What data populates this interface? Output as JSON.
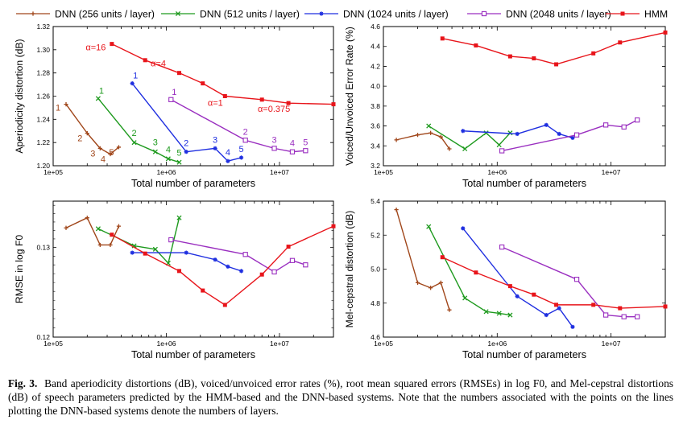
{
  "legend": [
    {
      "name": "DNN (256 units / layer)",
      "color": "#a0461a",
      "marker": "plus"
    },
    {
      "name": "DNN (512 units / layer)",
      "color": "#1e9a1e",
      "marker": "x"
    },
    {
      "name": "DNN (1024 units / layer)",
      "color": "#1f2fe0",
      "marker": "star"
    },
    {
      "name": "DNN (2048 units / layer)",
      "color": "#9a2fc0",
      "marker": "square"
    },
    {
      "name": "HMM",
      "color": "#e8151b",
      "marker": "filled-square"
    }
  ],
  "caption": {
    "label": "Fig. 3",
    "text": "Band aperiodicity distortions (dB), voiced/unvoiced error rates (%), root mean squared errors (RMSEs) in log F0, and Mel-cepstral distortions (dB) of speech parameters predicted by the HMM-based and the DNN-based systems. Note that the numbers associated with the points on the lines plotting the DNN-based systems denote the numbers of layers."
  },
  "chart_data": [
    {
      "type": "line",
      "xscale": "log",
      "xlim": [
        100000,
        30000000
      ],
      "xlabel": "Total number of parameters",
      "ylabel": "Aperiodicity distortion (dB)",
      "ylim": [
        1.2,
        1.32
      ],
      "yticks": [
        1.2,
        1.22,
        1.24,
        1.26,
        1.28,
        1.3,
        1.32
      ],
      "xticks": [
        {
          "v": 100000,
          "t": "1e+05"
        },
        {
          "v": 1000000,
          "t": "1e+06"
        },
        {
          "v": 10000000,
          "t": "1e+07"
        }
      ],
      "series": [
        {
          "name": "DNN (256 units / layer)",
          "x": [
            130000,
            200000,
            260000,
            320000,
            380000
          ],
          "y": [
            1.253,
            1.228,
            1.215,
            1.21,
            1.216
          ],
          "labels": [
            "1",
            "2",
            "3",
            "4",
            "5"
          ]
        },
        {
          "name": "DNN (512 units / layer)",
          "x": [
            250000,
            520000,
            800000,
            1040000,
            1300000
          ],
          "y": [
            1.258,
            1.22,
            1.212,
            1.206,
            1.203
          ],
          "labels": [
            "1",
            "2",
            "3",
            "4",
            "5"
          ]
        },
        {
          "name": "DNN (1024 units / layer)",
          "x": [
            500000,
            1500000,
            2700000,
            3500000,
            4600000
          ],
          "y": [
            1.271,
            1.212,
            1.215,
            1.204,
            1.207
          ],
          "labels": [
            "1",
            "2",
            "3",
            "4",
            "5"
          ]
        },
        {
          "name": "DNN (2048 units / layer)",
          "x": [
            1100000,
            5000000,
            9000000,
            13000000,
            17000000
          ],
          "y": [
            1.257,
            1.222,
            1.215,
            1.212,
            1.213
          ],
          "labels": [
            "1",
            "2",
            "3",
            "4",
            "5"
          ]
        },
        {
          "name": "HMM",
          "x": [
            330000,
            650000,
            1300000,
            2100000,
            3300000,
            7000000,
            12000000,
            30000000
          ],
          "y": [
            1.305,
            1.291,
            1.28,
            1.271,
            1.26,
            1.257,
            1.254,
            1.253
          ]
        }
      ],
      "annotations": [
        "α=16",
        "α=4",
        "α=1",
        "α=0.375"
      ]
    },
    {
      "type": "line",
      "xscale": "log",
      "xlim": [
        100000,
        30000000
      ],
      "xlabel": "Total number of parameters",
      "ylabel": "Voiced/Unvoiced Error Rate (%)",
      "ylim": [
        3.2,
        4.6
      ],
      "yticks": [
        3.2,
        3.4,
        3.6,
        3.8,
        4.0,
        4.2,
        4.4,
        4.6
      ],
      "xticks": [
        {
          "v": 100000,
          "t": "1e+05"
        },
        {
          "v": 1000000,
          "t": "1e+06"
        },
        {
          "v": 10000000,
          "t": "1e+07"
        }
      ],
      "series": [
        {
          "name": "DNN (256 units / layer)",
          "x": [
            130000,
            200000,
            260000,
            320000,
            380000
          ],
          "y": [
            3.46,
            3.51,
            3.53,
            3.49,
            3.37
          ]
        },
        {
          "name": "DNN (512 units / layer)",
          "x": [
            250000,
            520000,
            800000,
            1040000,
            1300000
          ],
          "y": [
            3.6,
            3.37,
            3.53,
            3.41,
            3.53
          ]
        },
        {
          "name": "DNN (1024 units / layer)",
          "x": [
            500000,
            1500000,
            2700000,
            3500000,
            4600000
          ],
          "y": [
            3.55,
            3.52,
            3.61,
            3.52,
            3.48
          ]
        },
        {
          "name": "DNN (2048 units / layer)",
          "x": [
            1100000,
            5000000,
            9000000,
            13000000,
            17000000
          ],
          "y": [
            3.35,
            3.51,
            3.61,
            3.59,
            3.66
          ]
        },
        {
          "name": "HMM",
          "x": [
            330000,
            650000,
            1300000,
            2100000,
            3300000,
            7000000,
            12000000,
            30000000
          ],
          "y": [
            4.48,
            4.41,
            4.3,
            4.28,
            4.22,
            4.33,
            4.44,
            4.54
          ]
        }
      ]
    },
    {
      "type": "line",
      "xscale": "log",
      "yscale": "log",
      "xlim": [
        100000,
        30000000
      ],
      "xlabel": "Total number of parameters",
      "ylabel": "RMSE in log F0",
      "ylim": [
        0.12,
        0.1355
      ],
      "yticks": [
        0.12,
        0.13
      ],
      "xticks": [
        {
          "v": 100000,
          "t": "1e+05"
        },
        {
          "v": 1000000,
          "t": "1e+06"
        },
        {
          "v": 10000000,
          "t": "1e+07"
        }
      ],
      "series": [
        {
          "name": "DNN (256 units / layer)",
          "x": [
            130000,
            200000,
            260000,
            320000,
            380000
          ],
          "y": [
            0.1323,
            0.1335,
            0.1303,
            0.1303,
            0.1325
          ]
        },
        {
          "name": "DNN (512 units / layer)",
          "x": [
            250000,
            520000,
            800000,
            1040000,
            1300000
          ],
          "y": [
            0.1322,
            0.1302,
            0.1298,
            0.1282,
            0.1335
          ]
        },
        {
          "name": "DNN (1024 units / layer)",
          "x": [
            500000,
            1500000,
            2700000,
            3500000,
            4600000
          ],
          "y": [
            0.1294,
            0.1294,
            0.1286,
            0.1278,
            0.1273
          ]
        },
        {
          "name": "DNN (2048 units / layer)",
          "x": [
            1100000,
            5000000,
            9000000,
            13000000,
            17000000
          ],
          "y": [
            0.1309,
            0.1292,
            0.1272,
            0.1285,
            0.128
          ]
        },
        {
          "name": "HMM",
          "x": [
            330000,
            650000,
            1300000,
            2100000,
            3300000,
            7000000,
            12000000,
            30000000
          ],
          "y": [
            0.1315,
            0.1293,
            0.1273,
            0.1251,
            0.1235,
            0.1269,
            0.1301,
            0.1325
          ]
        }
      ]
    },
    {
      "type": "line",
      "xscale": "log",
      "xlim": [
        100000,
        30000000
      ],
      "xlabel": "Total number of parameters",
      "ylabel": "Mel-cepstral distortion (dB)",
      "ylim": [
        4.6,
        5.4
      ],
      "yticks": [
        4.6,
        4.8,
        5.0,
        5.2,
        5.4
      ],
      "xticks": [
        {
          "v": 100000,
          "t": "1e+05"
        },
        {
          "v": 1000000,
          "t": "1e+06"
        },
        {
          "v": 10000000,
          "t": "1e+07"
        }
      ],
      "series": [
        {
          "name": "DNN (256 units / layer)",
          "x": [
            130000,
            200000,
            260000,
            320000,
            380000
          ],
          "y": [
            5.35,
            4.92,
            4.89,
            4.92,
            4.76
          ]
        },
        {
          "name": "DNN (512 units / layer)",
          "x": [
            250000,
            520000,
            800000,
            1040000,
            1300000
          ],
          "y": [
            5.25,
            4.83,
            4.75,
            4.74,
            4.73
          ]
        },
        {
          "name": "DNN (1024 units / layer)",
          "x": [
            500000,
            1500000,
            2700000,
            3500000,
            4600000
          ],
          "y": [
            5.24,
            4.84,
            4.73,
            4.77,
            4.66
          ]
        },
        {
          "name": "DNN (2048 units / layer)",
          "x": [
            1100000,
            5000000,
            9000000,
            13000000,
            17000000
          ],
          "y": [
            5.13,
            4.94,
            4.73,
            4.72,
            4.72
          ]
        },
        {
          "name": "HMM",
          "x": [
            330000,
            650000,
            1300000,
            2100000,
            3300000,
            7000000,
            12000000,
            30000000
          ],
          "y": [
            5.07,
            4.98,
            4.9,
            4.85,
            4.79,
            4.79,
            4.77,
            4.78
          ]
        }
      ]
    }
  ]
}
